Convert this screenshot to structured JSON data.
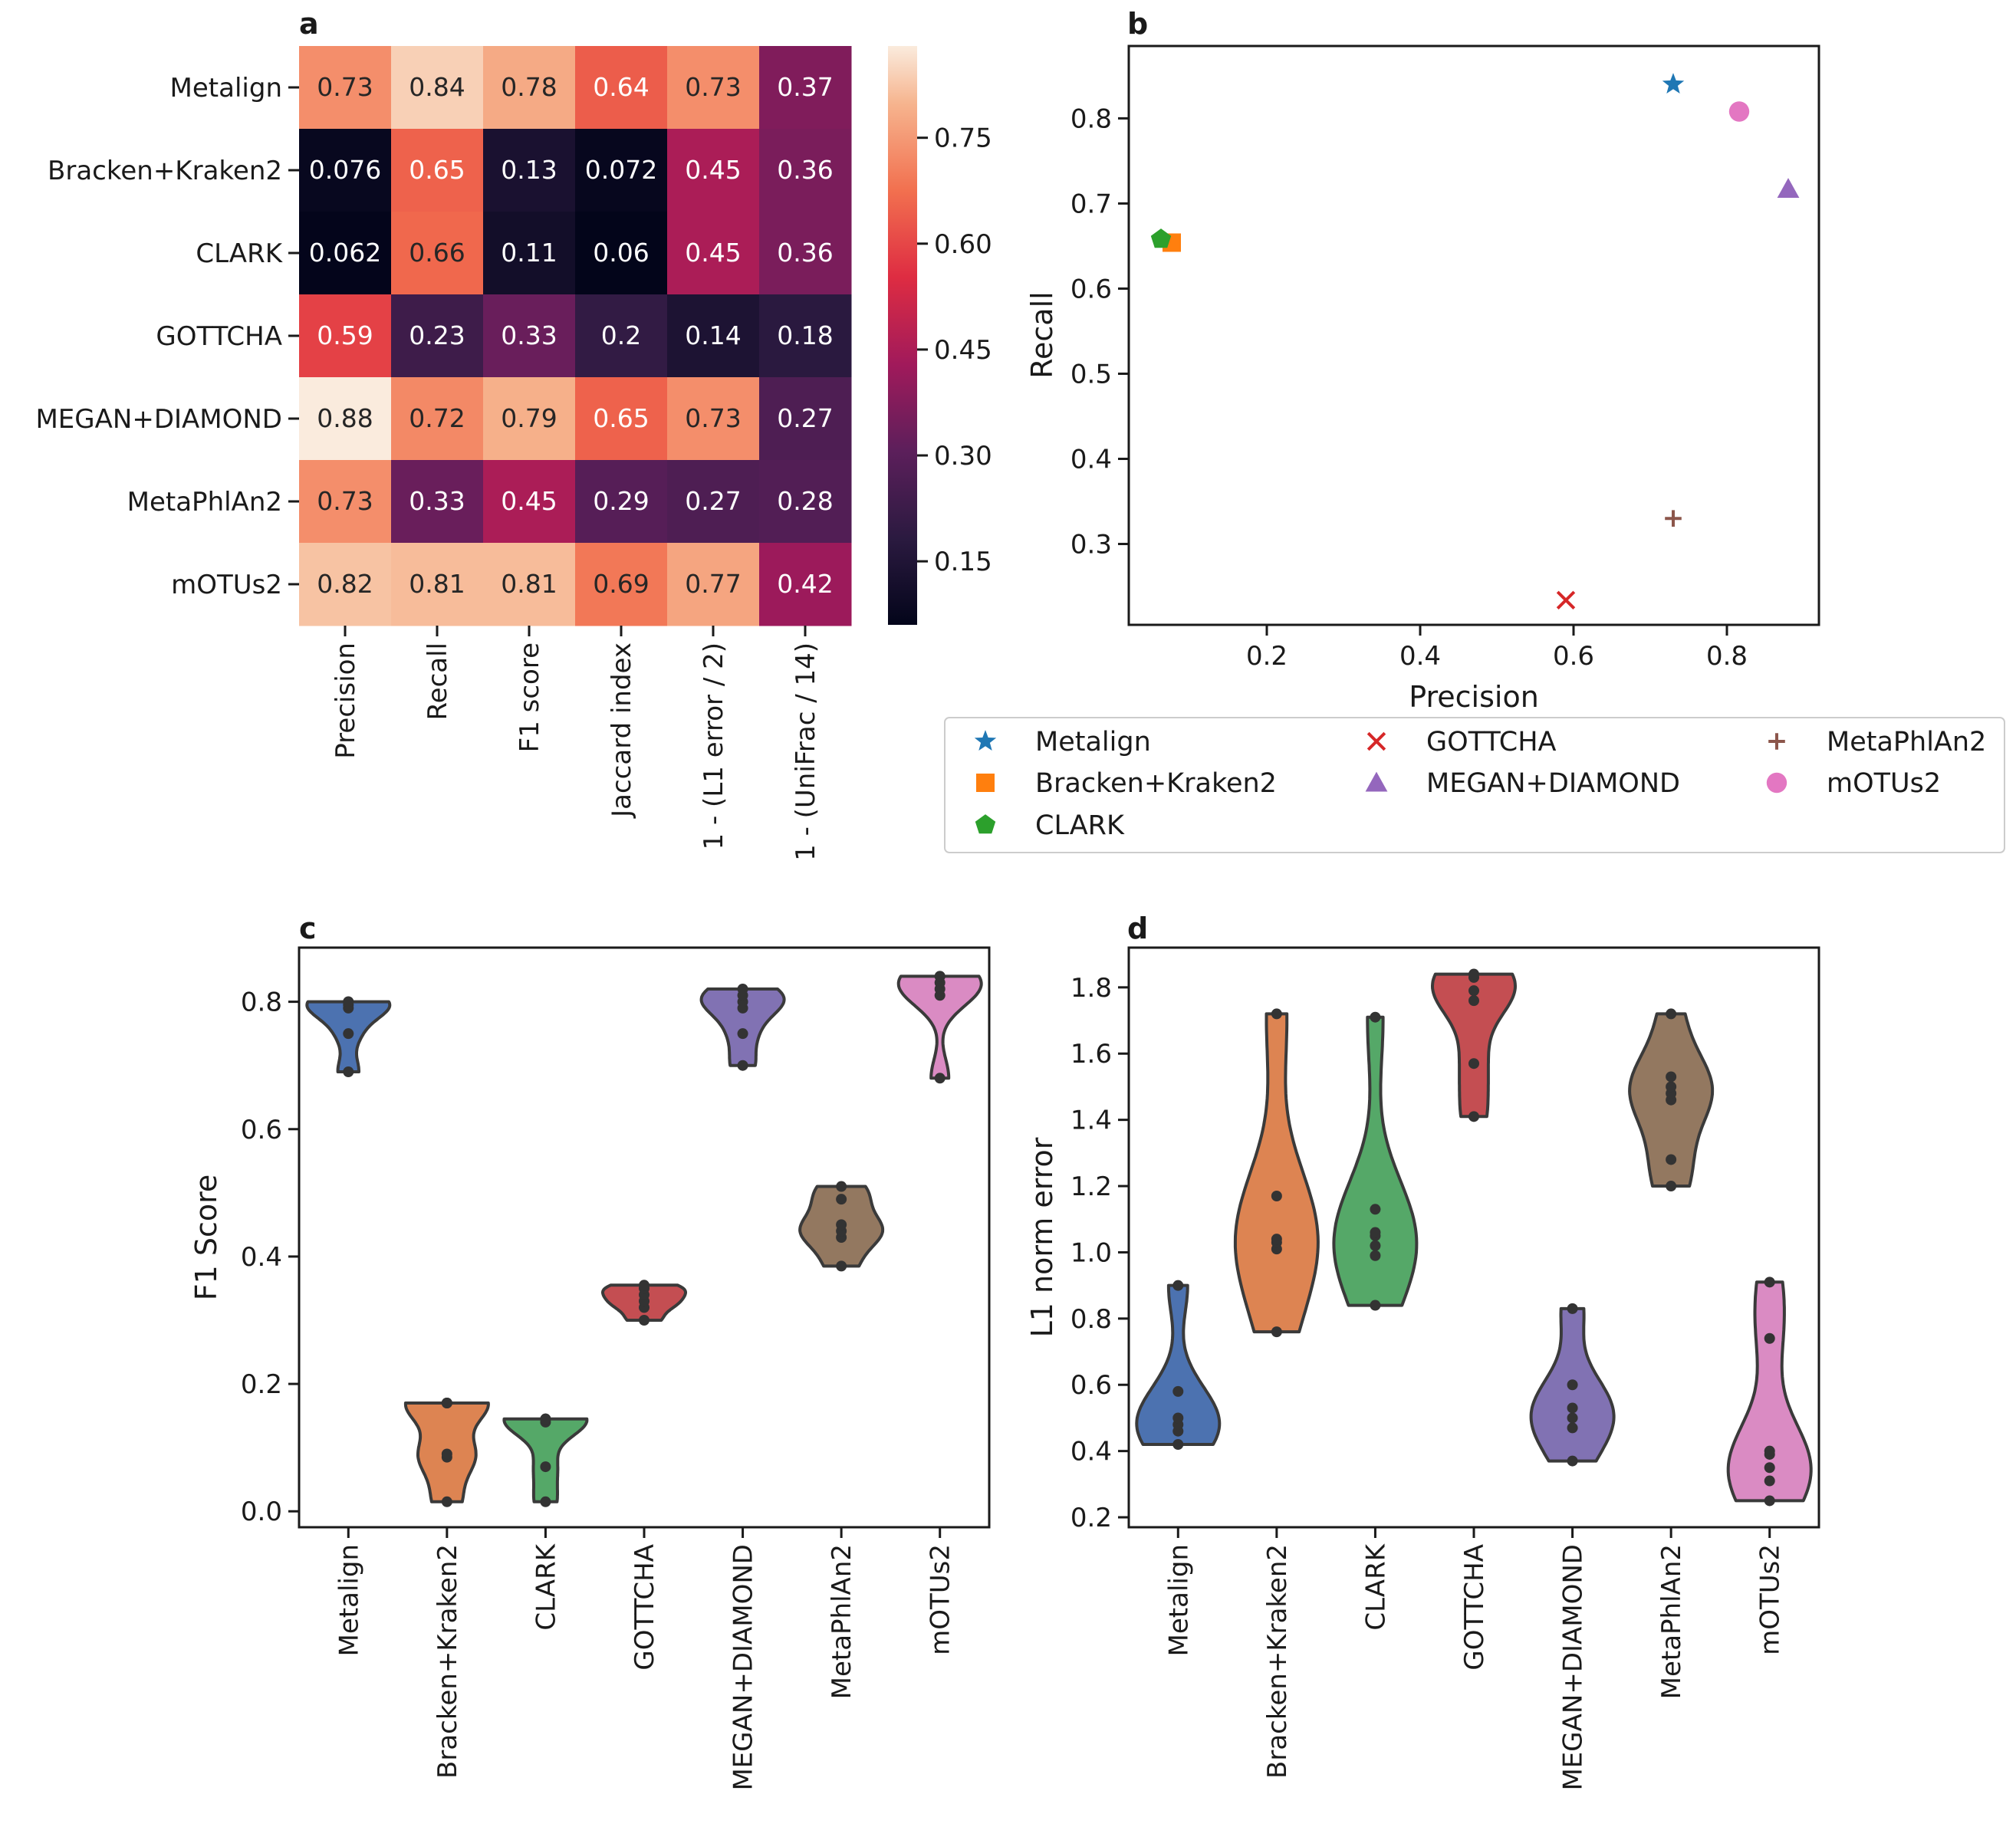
{
  "panels": {
    "a": {
      "letter": "a",
      "type": "heatmap",
      "rows": [
        "Metalign",
        "Bracken+Kraken2",
        "CLARK",
        "GOTTCHA",
        "MEGAN+DIAMOND",
        "MetaPhlAn2",
        "mOTUs2"
      ],
      "columns": [
        "Precision",
        "Recall",
        "F1 score",
        "Jaccard index",
        "1 - (L1 error / 2)",
        "1 - (UniFrac / 14)"
      ],
      "values": [
        [
          0.73,
          0.84,
          0.78,
          0.64,
          0.73,
          0.37
        ],
        [
          0.076,
          0.65,
          0.13,
          0.072,
          0.45,
          0.36
        ],
        [
          0.062,
          0.66,
          0.11,
          0.06,
          0.45,
          0.36
        ],
        [
          0.59,
          0.23,
          0.33,
          0.2,
          0.14,
          0.18
        ],
        [
          0.88,
          0.72,
          0.79,
          0.65,
          0.73,
          0.27
        ],
        [
          0.73,
          0.33,
          0.45,
          0.29,
          0.27,
          0.28
        ],
        [
          0.82,
          0.81,
          0.81,
          0.69,
          0.77,
          0.42
        ]
      ],
      "labels": [
        [
          "0.73",
          "0.84",
          "0.78",
          "0.64",
          "0.73",
          "0.37"
        ],
        [
          "0.076",
          "0.65",
          "0.13",
          "0.072",
          "0.45",
          "0.36"
        ],
        [
          "0.062",
          "0.66",
          "0.11",
          "0.06",
          "0.45",
          "0.36"
        ],
        [
          "0.59",
          "0.23",
          "0.33",
          "0.2",
          "0.14",
          "0.18"
        ],
        [
          "0.88",
          "0.72",
          "0.79",
          "0.65",
          "0.73",
          "0.27"
        ],
        [
          "0.73",
          "0.33",
          "0.45",
          "0.29",
          "0.27",
          "0.28"
        ],
        [
          "0.82",
          "0.81",
          "0.81",
          "0.69",
          "0.77",
          "0.42"
        ]
      ],
      "colorbar": {
        "min": 0.06,
        "max": 0.88,
        "ticks": [
          "0.15",
          "0.30",
          "0.45",
          "0.60",
          "0.75"
        ],
        "colormap": "rocket"
      }
    },
    "b": {
      "letter": "b",
      "type": "scatter",
      "xlabel": "Precision",
      "ylabel": "Recall",
      "xlim": [
        0.02,
        0.92
      ],
      "ylim": [
        0.205,
        0.885
      ],
      "xticks": [
        "0.2",
        "0.4",
        "0.6",
        "0.8"
      ],
      "yticks": [
        "0.3",
        "0.4",
        "0.5",
        "0.6",
        "0.7",
        "0.8"
      ],
      "points": [
        {
          "name": "Metalign",
          "x": 0.73,
          "y": 0.84,
          "marker": "star",
          "color": "#1f77b4"
        },
        {
          "name": "Bracken+Kraken2",
          "x": 0.076,
          "y": 0.654,
          "marker": "square",
          "color": "#ff7f0e"
        },
        {
          "name": "CLARK",
          "x": 0.062,
          "y": 0.658,
          "marker": "pentagon",
          "color": "#2ca02c"
        },
        {
          "name": "GOTTCHA",
          "x": 0.59,
          "y": 0.234,
          "marker": "x",
          "color": "#d62728"
        },
        {
          "name": "MEGAN+DIAMOND",
          "x": 0.88,
          "y": 0.717,
          "marker": "triangle",
          "color": "#9467bd"
        },
        {
          "name": "MetaPhlAn2",
          "x": 0.73,
          "y": 0.33,
          "marker": "plus",
          "color": "#8c564b"
        },
        {
          "name": "mOTUs2",
          "x": 0.816,
          "y": 0.808,
          "marker": "circle",
          "color": "#e377c2"
        }
      ]
    },
    "c": {
      "letter": "c",
      "type": "violin",
      "ylabel": "F1 Score",
      "ylim": [
        -0.025,
        0.885
      ],
      "yticks": [
        "0.0",
        "0.2",
        "0.4",
        "0.6",
        "0.8"
      ],
      "categories": [
        "Metalign",
        "Bracken+Kraken2",
        "CLARK",
        "GOTTCHA",
        "MEGAN+DIAMOND",
        "MetaPhlAn2",
        "mOTUs2"
      ],
      "colors": [
        "#4c72b0",
        "#dd8452",
        "#55a868",
        "#c44e52",
        "#8172b3",
        "#937860",
        "#da8bc3"
      ],
      "points": [
        [
          0.69,
          0.75,
          0.79,
          0.795,
          0.8,
          0.8
        ],
        [
          0.015,
          0.085,
          0.09,
          0.17,
          0.17,
          0.17
        ],
        [
          0.015,
          0.07,
          0.14,
          0.145,
          0.145,
          0.145
        ],
        [
          0.3,
          0.32,
          0.33,
          0.34,
          0.35,
          0.355
        ],
        [
          0.7,
          0.75,
          0.79,
          0.8,
          0.81,
          0.82
        ],
        [
          0.385,
          0.43,
          0.44,
          0.45,
          0.49,
          0.51
        ],
        [
          0.68,
          0.81,
          0.82,
          0.83,
          0.84,
          0.84
        ]
      ]
    },
    "d": {
      "letter": "d",
      "type": "violin",
      "ylabel": "L1 norm error",
      "ylim": [
        0.17,
        1.92
      ],
      "yticks": [
        "0.2",
        "0.4",
        "0.6",
        "0.8",
        "1.0",
        "1.2",
        "1.4",
        "1.6",
        "1.8"
      ],
      "categories": [
        "Metalign",
        "Bracken+Kraken2",
        "CLARK",
        "GOTTCHA",
        "MEGAN+DIAMOND",
        "MetaPhlAn2",
        "mOTUs2"
      ],
      "colors": [
        "#4c72b0",
        "#dd8452",
        "#55a868",
        "#c44e52",
        "#8172b3",
        "#937860",
        "#da8bc3"
      ],
      "points": [
        [
          0.42,
          0.46,
          0.48,
          0.5,
          0.58,
          0.9
        ],
        [
          0.76,
          1.01,
          1.03,
          1.04,
          1.17,
          1.72
        ],
        [
          0.84,
          0.99,
          1.02,
          1.05,
          1.06,
          1.13,
          1.71
        ],
        [
          1.41,
          1.57,
          1.76,
          1.79,
          1.83,
          1.84
        ],
        [
          0.37,
          0.47,
          0.5,
          0.53,
          0.6,
          0.83
        ],
        [
          1.2,
          1.28,
          1.46,
          1.48,
          1.5,
          1.53,
          1.72
        ],
        [
          0.25,
          0.31,
          0.35,
          0.39,
          0.4,
          0.74,
          0.91
        ]
      ]
    }
  },
  "legend": {
    "entries": [
      {
        "name": "Metalign",
        "marker": "star",
        "color": "#1f77b4"
      },
      {
        "name": "Bracken+Kraken2",
        "marker": "square",
        "color": "#ff7f0e"
      },
      {
        "name": "CLARK",
        "marker": "pentagon",
        "color": "#2ca02c"
      },
      {
        "name": "GOTTCHA",
        "marker": "x",
        "color": "#d62728"
      },
      {
        "name": "MEGAN+DIAMOND",
        "marker": "triangle",
        "color": "#9467bd"
      },
      {
        "name": "MetaPhlAn2",
        "marker": "plus",
        "color": "#8c564b"
      },
      {
        "name": "mOTUs2",
        "marker": "circle",
        "color": "#e377c2"
      }
    ]
  },
  "chart_data": [
    {
      "type": "heatmap",
      "rows": [
        "Metalign",
        "Bracken+Kraken2",
        "CLARK",
        "GOTTCHA",
        "MEGAN+DIAMOND",
        "MetaPhlAn2",
        "mOTUs2"
      ],
      "columns": [
        "Precision",
        "Recall",
        "F1 score",
        "Jaccard index",
        "1 - (L1 error / 2)",
        "1 - (UniFrac / 14)"
      ],
      "values": [
        [
          0.73,
          0.84,
          0.78,
          0.64,
          0.73,
          0.37
        ],
        [
          0.076,
          0.65,
          0.13,
          0.072,
          0.45,
          0.36
        ],
        [
          0.062,
          0.66,
          0.11,
          0.06,
          0.45,
          0.36
        ],
        [
          0.59,
          0.23,
          0.33,
          0.2,
          0.14,
          0.18
        ],
        [
          0.88,
          0.72,
          0.79,
          0.65,
          0.73,
          0.27
        ],
        [
          0.73,
          0.33,
          0.45,
          0.29,
          0.27,
          0.28
        ],
        [
          0.82,
          0.81,
          0.81,
          0.69,
          0.77,
          0.42
        ]
      ],
      "colorbar_ticks": [
        0.15,
        0.3,
        0.45,
        0.6,
        0.75
      ]
    },
    {
      "type": "scatter",
      "xlabel": "Precision",
      "ylabel": "Recall",
      "series": [
        {
          "name": "Metalign",
          "x": [
            0.73
          ],
          "y": [
            0.84
          ]
        },
        {
          "name": "Bracken+Kraken2",
          "x": [
            0.076
          ],
          "y": [
            0.654
          ]
        },
        {
          "name": "CLARK",
          "x": [
            0.062
          ],
          "y": [
            0.658
          ]
        },
        {
          "name": "GOTTCHA",
          "x": [
            0.59
          ],
          "y": [
            0.234
          ]
        },
        {
          "name": "MEGAN+DIAMOND",
          "x": [
            0.88
          ],
          "y": [
            0.717
          ]
        },
        {
          "name": "MetaPhlAn2",
          "x": [
            0.73
          ],
          "y": [
            0.33
          ]
        },
        {
          "name": "mOTUs2",
          "x": [
            0.816
          ],
          "y": [
            0.808
          ]
        }
      ],
      "legend": "below"
    },
    {
      "type": "violin",
      "ylabel": "F1 Score",
      "categories": [
        "Metalign",
        "Bracken+Kraken2",
        "CLARK",
        "GOTTCHA",
        "MEGAN+DIAMOND",
        "MetaPhlAn2",
        "mOTUs2"
      ]
    },
    {
      "type": "violin",
      "ylabel": "L1 norm error",
      "categories": [
        "Metalign",
        "Bracken+Kraken2",
        "CLARK",
        "GOTTCHA",
        "MEGAN+DIAMOND",
        "MetaPhlAn2",
        "mOTUs2"
      ]
    }
  ]
}
